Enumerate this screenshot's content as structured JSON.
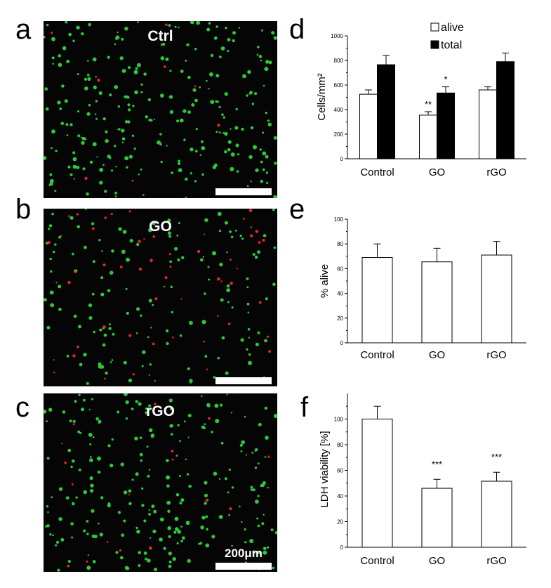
{
  "panels": {
    "a": {
      "letter": "a",
      "label": "Ctrl",
      "green_cells": 260,
      "red_cells": 8
    },
    "b": {
      "letter": "b",
      "label": "GO",
      "green_cells": 150,
      "red_cells": 55
    },
    "c": {
      "letter": "c",
      "label": "rGO",
      "green_cells": 240,
      "red_cells": 18,
      "scale_label": "200μm"
    },
    "d": {
      "letter": "d"
    },
    "e": {
      "letter": "e"
    },
    "f": {
      "letter": "f"
    }
  },
  "colors": {
    "cell_green": "#2ec83a",
    "cell_red": "#e4262c",
    "bar_open": "#ffffff",
    "bar_filled": "#000000"
  },
  "chart_data": [
    {
      "panel": "d",
      "type": "bar",
      "categories": [
        "Control",
        "GO",
        "rGO"
      ],
      "series": [
        {
          "name": "alive",
          "fill": "open",
          "values": [
            525,
            355,
            560
          ],
          "errors": [
            35,
            28,
            25
          ]
        },
        {
          "name": "total",
          "fill": "filled",
          "values": [
            765,
            535,
            790
          ],
          "errors": [
            75,
            50,
            70
          ]
        }
      ],
      "ylabel": "Cells/mm²",
      "ylim": [
        0,
        1000
      ],
      "yticks": [
        0,
        200,
        400,
        600,
        800,
        1000
      ],
      "annotations": [
        {
          "category": "GO",
          "series": "alive",
          "text": "**"
        },
        {
          "category": "GO",
          "series": "total",
          "text": "*"
        }
      ],
      "legend": "top-right"
    },
    {
      "panel": "e",
      "type": "bar",
      "categories": [
        "Control",
        "GO",
        "rGO"
      ],
      "values": [
        69,
        65.5,
        71
      ],
      "errors": [
        11,
        11,
        11
      ],
      "ylabel": "% alive",
      "ylim": [
        0,
        100
      ],
      "yticks": [
        0,
        20,
        40,
        60,
        80,
        100
      ]
    },
    {
      "panel": "f",
      "type": "bar",
      "categories": [
        "Control",
        "GO",
        "rGO"
      ],
      "values": [
        100,
        46,
        51.5
      ],
      "errors": [
        10,
        7,
        7
      ],
      "ylabel": "LDH viability [%]",
      "ylim": [
        0,
        120
      ],
      "yticks": [
        0,
        20,
        40,
        60,
        80,
        100
      ],
      "annotations": [
        {
          "category": "GO",
          "text": "***"
        },
        {
          "category": "rGO",
          "text": "***"
        }
      ]
    }
  ]
}
